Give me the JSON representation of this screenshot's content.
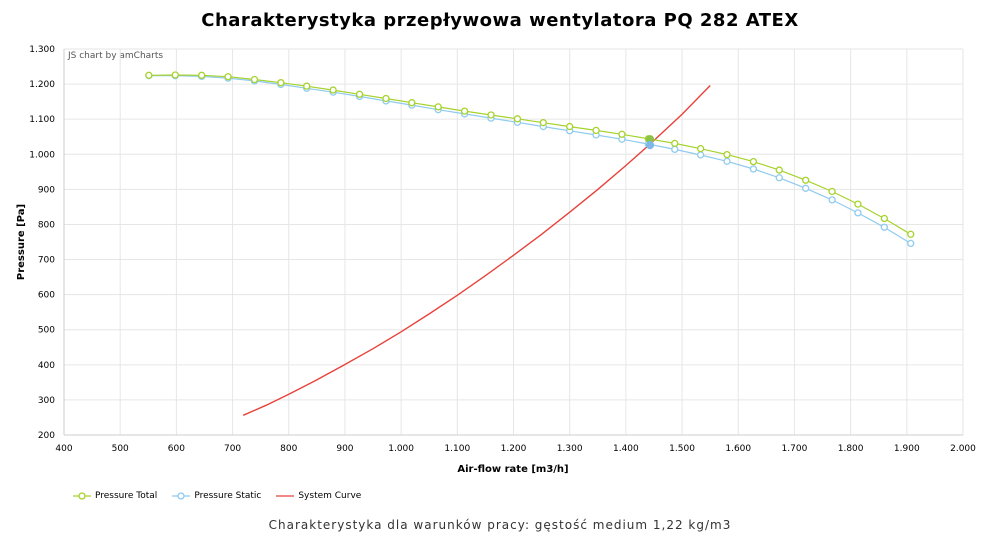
{
  "title": "Charakterystyka przepływowa wentylatora PQ 282 ATEX",
  "subtitle": "Charakterystyka dla warunków pracy: gęstość medium 1,22 kg/m3",
  "credit": "JS chart by amCharts",
  "chart_data": {
    "type": "line",
    "xlabel": "Air-flow rate [m3/h]",
    "ylabel": "Pressure [Pa]",
    "xlim": [
      400,
      2000
    ],
    "ylim": [
      200,
      1300
    ],
    "x_ticks": [
      400,
      500,
      600,
      700,
      800,
      900,
      1000,
      1100,
      1200,
      1300,
      1400,
      1500,
      1600,
      1700,
      1800,
      1900,
      2000
    ],
    "x_tick_labels": [
      "400",
      "500",
      "600",
      "700",
      "800",
      "900",
      "1.000",
      "1.100",
      "1.200",
      "1.300",
      "1.400",
      "1.500",
      "1.600",
      "1.700",
      "1.800",
      "1.900",
      "2.000"
    ],
    "y_ticks": [
      200,
      300,
      400,
      500,
      600,
      700,
      800,
      900,
      1000,
      1100,
      1200,
      1300
    ],
    "y_tick_labels": [
      "200",
      "300",
      "400",
      "500",
      "600",
      "700",
      "800",
      "900",
      "1.000",
      "1.100",
      "1.200",
      "1.300"
    ],
    "grid": true,
    "legend_position": "bottom-left",
    "series": [
      {
        "name": "Pressure Total",
        "color": "#a6d22c",
        "marker": "circle-open",
        "x": [
          551,
          598,
          645,
          692,
          739,
          786,
          832,
          879,
          926,
          973,
          1019,
          1066,
          1113,
          1160,
          1207,
          1253,
          1300,
          1347,
          1393,
          1440,
          1487,
          1533,
          1580,
          1627,
          1673,
          1720,
          1767,
          1813,
          1860,
          1907
        ],
        "y": [
          1225,
          1226,
          1225,
          1221,
          1213,
          1204,
          1194,
          1183,
          1171,
          1159,
          1147,
          1135,
          1123,
          1112,
          1101,
          1090,
          1079,
          1068,
          1057,
          1044,
          1031,
          1016,
          999,
          979,
          955,
          926,
          894,
          858,
          817,
          772
        ]
      },
      {
        "name": "Pressure Static",
        "color": "#8fcbee",
        "marker": "circle-open",
        "x": [
          551,
          598,
          645,
          692,
          739,
          786,
          832,
          879,
          926,
          973,
          1019,
          1066,
          1113,
          1160,
          1207,
          1253,
          1300,
          1347,
          1393,
          1440,
          1487,
          1533,
          1580,
          1627,
          1673,
          1720,
          1767,
          1813,
          1860,
          1907
        ],
        "y": [
          1224,
          1224,
          1222,
          1217,
          1209,
          1199,
          1188,
          1177,
          1165,
          1152,
          1140,
          1127,
          1115,
          1103,
          1091,
          1079,
          1067,
          1055,
          1043,
          1029,
          1014,
          998,
          980,
          958,
          933,
          903,
          870,
          833,
          792,
          746
        ]
      },
      {
        "name": "System Curve",
        "color": "#e8423a",
        "marker": "none",
        "x": [
          719,
          760,
          800,
          850,
          900,
          950,
          1000,
          1050,
          1100,
          1150,
          1200,
          1250,
          1300,
          1350,
          1400,
          1443,
          1500,
          1550
        ],
        "y": [
          256,
          285,
          316,
          357,
          401,
          446,
          494,
          545,
          598,
          654,
          712,
          772,
          835,
          900,
          968,
          1029,
          1114,
          1196
        ]
      }
    ],
    "operating_points": [
      {
        "series": "Pressure Total",
        "x": 1443,
        "y": 1043,
        "color": "#8bc34a"
      },
      {
        "series": "Pressure Static",
        "x": 1443,
        "y": 1026,
        "color": "#7fb8e8"
      }
    ]
  }
}
